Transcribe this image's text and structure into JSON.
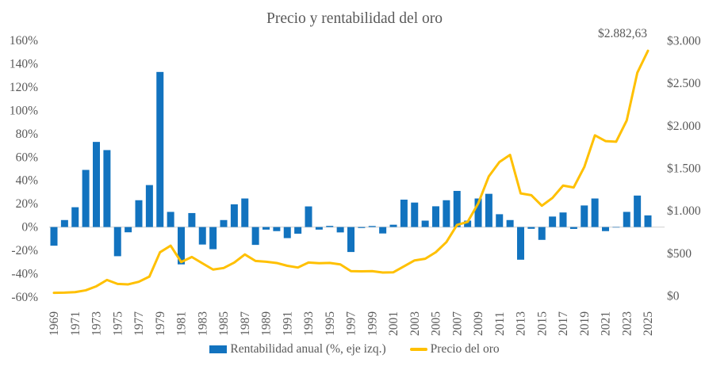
{
  "title": "Precio y rentabilidad del oro",
  "legend": {
    "bars": "Rentabilidad anual (%, eje izq.)",
    "line": "Precio del oro"
  },
  "colors": {
    "bar": "#1273BF",
    "line": "#FFC000",
    "text": "#595959",
    "axis_line": "#D9D9D9"
  },
  "chart_data": {
    "type": "bar",
    "subtype": "combo-bar-line",
    "title": "Precio y rentabilidad del oro",
    "legend_position": "bottom",
    "grid": false,
    "x": [
      1969,
      1970,
      1971,
      1972,
      1973,
      1974,
      1975,
      1976,
      1977,
      1978,
      1979,
      1980,
      1981,
      1982,
      1983,
      1984,
      1985,
      1986,
      1987,
      1988,
      1989,
      1990,
      1991,
      1992,
      1993,
      1994,
      1995,
      1996,
      1997,
      1998,
      1999,
      2000,
      2001,
      2002,
      2003,
      2004,
      2005,
      2006,
      2007,
      2008,
      2009,
      2010,
      2011,
      2012,
      2013,
      2014,
      2015,
      2016,
      2017,
      2018,
      2019,
      2020,
      2021,
      2022,
      2023,
      2024,
      2025
    ],
    "series": [
      {
        "name": "Rentabilidad anual (%, eje izq.)",
        "type": "bar",
        "axis": "left",
        "unit": "%",
        "values": [
          -16,
          6,
          17,
          49,
          73,
          66,
          -25,
          -4.5,
          23,
          36,
          133,
          13,
          -32,
          12,
          -15,
          -19,
          6,
          19.5,
          24.5,
          -15.3,
          -2.2,
          -3.5,
          -9.5,
          -5.7,
          17.7,
          -2.2,
          1,
          -4.6,
          -21.4,
          -0.8,
          0.9,
          -5.5,
          2,
          23.5,
          21,
          5.5,
          17.8,
          23,
          31,
          5.5,
          24.5,
          28.5,
          11,
          6,
          -28,
          -1.5,
          -11,
          9,
          12.5,
          -1.6,
          18.5,
          24.5,
          -3.5,
          -0.4,
          13,
          27,
          10
        ]
      },
      {
        "name": "Precio del oro",
        "type": "line",
        "axis": "right",
        "unit": "USD",
        "values": [
          35.2,
          37.4,
          43.6,
          64.9,
          112.3,
          186.5,
          140.3,
          134.5,
          165,
          226,
          512,
          589.8,
          397.5,
          456.9,
          382.4,
          309,
          327,
          390.9,
          486.5,
          410.3,
          401,
          386.2,
          353.2,
          333,
          391.8,
          383.3,
          387,
          369.3,
          290.2,
          287.8,
          290.3,
          274.5,
          276.5,
          347.2,
          416.3,
          435.6,
          513,
          632,
          833.8,
          869.8,
          1087.5,
          1405.5,
          1574.5,
          1657.5,
          1204.5,
          1184,
          1060,
          1151.7,
          1296.5,
          1275,
          1514.8,
          1887.6,
          1820.1,
          1812.4,
          2062.4,
          2624.5,
          2882.63
        ]
      }
    ],
    "left_axis": {
      "min": -60,
      "max": 160,
      "step": 20,
      "tick_values": [
        160,
        140,
        120,
        100,
        80,
        60,
        40,
        20,
        0,
        -20,
        -40,
        -60
      ],
      "tick_labels": [
        "160%",
        "140%",
        "120%",
        "100%",
        "80%",
        "60%",
        "40%",
        "20%",
        "0%",
        "-20%",
        "-40%",
        "-60%"
      ]
    },
    "right_axis": {
      "min": 0,
      "max": 3000,
      "step": 500,
      "tick_values": [
        3000,
        2500,
        2000,
        1500,
        1000,
        500,
        0
      ],
      "tick_labels": [
        "$3.000",
        "$2.500",
        "$2.000",
        "$1.500",
        "$1.000",
        "$500",
        "$0"
      ]
    },
    "x_ticks": [
      "1969",
      "1971",
      "1973",
      "1975",
      "1977",
      "1979",
      "1981",
      "1983",
      "1985",
      "1987",
      "1989",
      "1991",
      "1993",
      "1995",
      "1997",
      "1999",
      "2001",
      "2003",
      "2005",
      "2007",
      "2009",
      "2011",
      "2013",
      "2015",
      "2017",
      "2019",
      "2021",
      "2023",
      "2025"
    ],
    "annotation": {
      "label": "$2.882,63",
      "x": 2025,
      "value": 2882.63
    }
  }
}
